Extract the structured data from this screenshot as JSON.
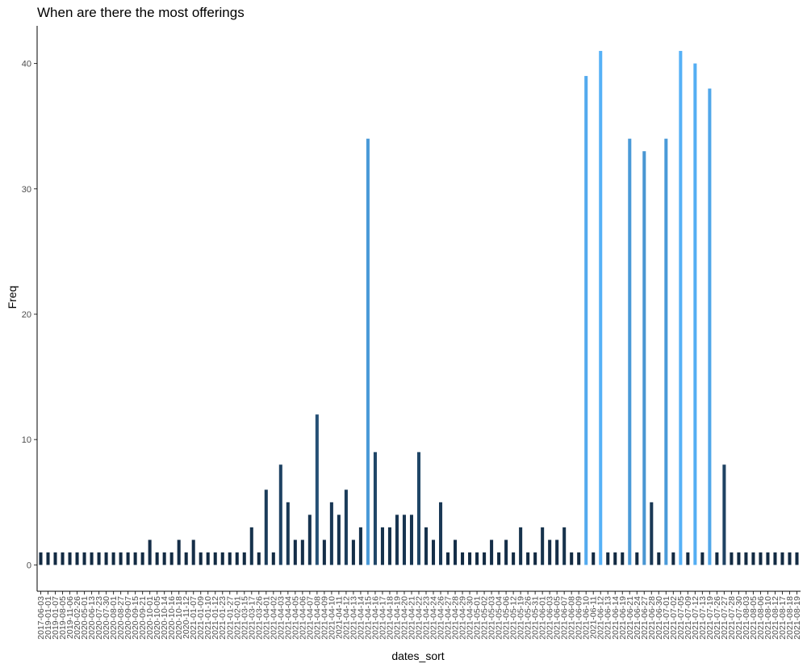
{
  "chart_data": {
    "type": "bar",
    "title": "When are there the most offerings",
    "xlabel": "dates_sort",
    "ylabel": "Freq",
    "ylim": [
      -2.1,
      43
    ],
    "yticks": [
      0,
      10,
      20,
      30,
      40
    ],
    "grid": false,
    "legend": "none",
    "fill_scale": {
      "low": "#132B43",
      "high": "#56B1F7"
    },
    "categories": [
      "2017-06-03",
      "2019-01-01",
      "2019-01-07",
      "2019-08-05",
      "2019-11-06",
      "2020-02-26",
      "2020-05-01",
      "2020-06-13",
      "2020-07-23",
      "2020-07-30",
      "2020-08-01",
      "2020-08-27",
      "2020-09-07",
      "2020-09-15",
      "2020-09-21",
      "2020-10-01",
      "2020-10-05",
      "2020-10-14",
      "2020-10-16",
      "2020-10-18",
      "2020-11-12",
      "2021-01-07",
      "2021-01-09",
      "2021-01-10",
      "2021-01-12",
      "2021-01-23",
      "2021-01-27",
      "2021-02-01",
      "2021-03-15",
      "2021-03-17",
      "2021-03-26",
      "2021-04-01",
      "2021-04-02",
      "2021-04-03",
      "2021-04-04",
      "2021-04-05",
      "2021-04-06",
      "2021-04-07",
      "2021-04-08",
      "2021-04-09",
      "2021-04-10",
      "2021-04-11",
      "2021-04-12",
      "2021-04-13",
      "2021-04-14",
      "2021-04-15",
      "2021-04-16",
      "2021-04-17",
      "2021-04-18",
      "2021-04-19",
      "2021-04-20",
      "2021-04-21",
      "2021-04-22",
      "2021-04-23",
      "2021-04-24",
      "2021-04-26",
      "2021-04-27",
      "2021-04-28",
      "2021-04-29",
      "2021-04-30",
      "2021-05-01",
      "2021-05-02",
      "2021-05-03",
      "2021-05-04",
      "2021-05-06",
      "2021-05-12",
      "2021-05-19",
      "2021-05-26",
      "2021-05-31",
      "2021-06-01",
      "2021-06-03",
      "2021-06-05",
      "2021-06-07",
      "2021-06-08",
      "2021-06-09",
      "2021-06-10",
      "2021-06-11",
      "2021-06-12",
      "2021-06-13",
      "2021-06-14",
      "2021-06-19",
      "2021-06-21",
      "2021-06-24",
      "2021-06-27",
      "2021-06-28",
      "2021-06-30",
      "2021-07-01",
      "2021-07-02",
      "2021-07-05",
      "2021-07-09",
      "2021-07-12",
      "2021-07-13",
      "2021-07-19",
      "2021-07-26",
      "2021-07-27",
      "2021-07-28",
      "2021-07-30",
      "2021-08-03",
      "2021-08-05",
      "2021-08-06",
      "2021-08-10",
      "2021-08-12",
      "2021-08-17",
      "2021-08-18",
      "2021-08-19"
    ],
    "values": [
      1,
      1,
      1,
      1,
      1,
      1,
      1,
      1,
      1,
      1,
      1,
      1,
      1,
      1,
      1,
      2,
      1,
      1,
      1,
      2,
      1,
      2,
      1,
      1,
      1,
      1,
      1,
      1,
      1,
      3,
      1,
      6,
      1,
      8,
      5,
      2,
      2,
      4,
      12,
      2,
      5,
      4,
      6,
      2,
      3,
      34,
      9,
      3,
      3,
      4,
      4,
      4,
      9,
      3,
      2,
      5,
      1,
      2,
      1,
      1,
      1,
      1,
      2,
      1,
      2,
      1,
      3,
      1,
      1,
      3,
      2,
      2,
      3,
      1,
      1,
      39,
      1,
      41,
      1,
      1,
      1,
      34,
      1,
      33,
      5,
      1,
      34,
      1,
      41,
      1,
      40,
      1,
      38,
      1,
      8,
      1,
      1,
      1,
      1,
      1,
      1,
      1,
      1,
      1,
      1
    ],
    "xtick_labels": [
      "2017-06-03",
      "2019-01-01",
      "2019-01-07",
      "2019-08-05",
      "2019-11-06",
      "2020-02-26",
      "2020-05-01",
      "2020-06-13",
      "2020-07-23",
      "2020-07-30",
      "2020-08-01",
      "2020-08-27",
      "2020-09-07",
      "2020-09-15",
      "2020-09-21",
      "2020-10-01",
      "2020-10-05",
      "2020-10-14",
      "2020-10-16",
      "2020-10-18",
      "2020-11-12",
      "2021-01-07",
      "2021-01-09",
      "2021-01-10",
      "2021-01-12",
      "2021-01-23",
      "2021-01-27",
      "2021-02-01",
      "2021-03-15",
      "2021-03-17",
      "2021-03-26",
      "2021-04-01",
      "2021-04-02",
      "2021-04-03",
      "2021-04-04",
      "2021-04-05",
      "2021-04-06",
      "2021-04-07",
      "2021-04-08",
      "2021-04-09",
      "2021-04-10",
      "2021-04-11",
      "2021-04-12",
      "2021-04-13",
      "2021-04-14",
      "2021-04-15",
      "2021-04-16",
      "2021-04-17",
      "2021-04-18",
      "2021-04-19",
      "2021-04-20",
      "2021-04-21",
      "2021-04-22",
      "2021-04-23",
      "2021-04-24",
      "2021-04-26",
      "2021-04-27",
      "2021-04-28",
      "2021-04-29",
      "2021-04-30",
      "2021-05-01",
      "2021-05-02",
      "2021-05-03",
      "2021-05-04",
      "2021-05-06",
      "2021-05-12",
      "2021-05-19",
      "2021-05-26",
      "2021-05-31",
      "2021-06-01",
      "2021-06-03",
      "2021-06-05",
      "2021-06-07",
      "2021-06-08",
      "2021-06-09",
      "2021-06-10",
      "2021-06-11",
      "2021-06-12",
      "2021-06-13",
      "2021-06-14",
      "2021-06-19",
      "2021-06-21",
      "2021-06-24",
      "2021-06-27",
      "2021-06-28",
      "2021-06-30",
      "2021-07-01",
      "2021-07-02",
      "2021-07-05",
      "2021-07-09",
      "2021-07-12",
      "2021-07-13",
      "2021-07-19",
      "2021-07-26",
      "2021-07-27",
      "2021-07-28",
      "2021-07-30",
      "2021-08-03",
      "2021-08-05",
      "2021-08-06",
      "2021-08-10",
      "2021-08-12",
      "2021-08-17",
      "2021-08-18",
      "2021-08-19"
    ]
  }
}
